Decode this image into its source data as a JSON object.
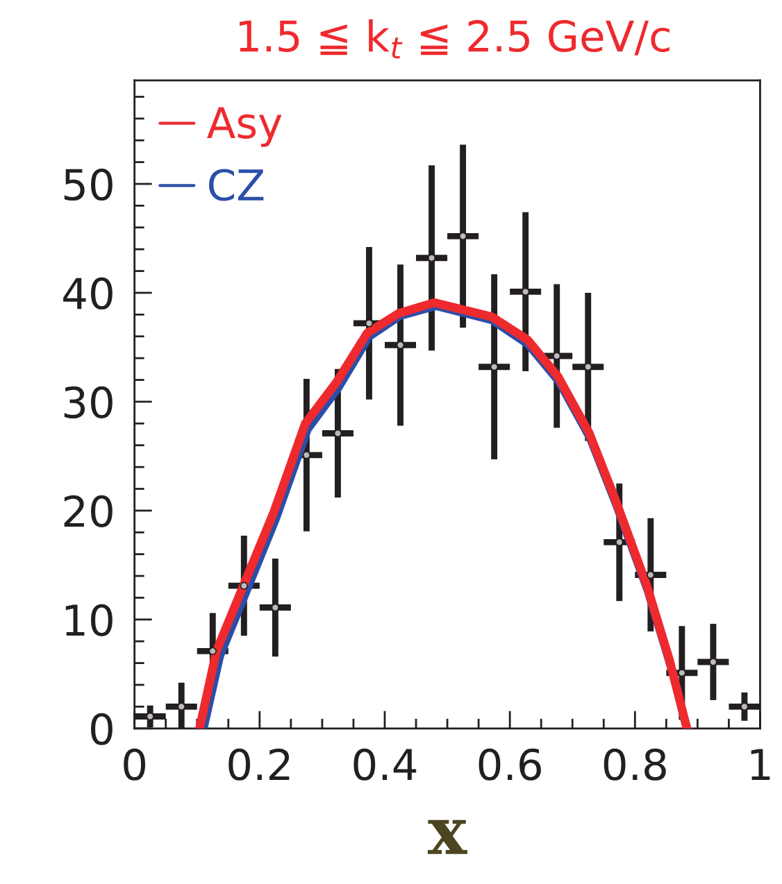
{
  "chart_data": {
    "type": "scatter",
    "title": "1.5 ≦ k$_{t}$ ≦ 2.5 GeV/c",
    "xlabel": "x",
    "xlim": [
      0,
      1
    ],
    "ylim": [
      0,
      59.5
    ],
    "xticks": [
      0,
      {
        "value": 0.05,
        "label": null
      },
      {
        "value": 0.1,
        "label": null
      },
      {
        "value": 0.15,
        "label": null
      },
      0.2,
      {
        "value": 0.25,
        "label": null
      },
      {
        "value": 0.3,
        "label": null
      },
      {
        "value": 0.35,
        "label": null
      },
      0.4,
      {
        "value": 0.45,
        "label": null
      },
      {
        "value": 0.5,
        "label": null
      },
      {
        "value": 0.55,
        "label": null
      },
      0.6,
      {
        "value": 0.65,
        "label": null
      },
      {
        "value": 0.7,
        "label": null
      },
      {
        "value": 0.75,
        "label": null
      },
      0.8,
      {
        "value": 0.85,
        "label": null
      },
      {
        "value": 0.9,
        "label": null
      },
      {
        "value": 0.95,
        "label": null
      },
      1
    ],
    "yticks": [
      0,
      {
        "value": 2,
        "label": null
      },
      {
        "value": 4,
        "label": null
      },
      {
        "value": 6,
        "label": null
      },
      {
        "value": 8,
        "label": null
      },
      10,
      {
        "value": 12,
        "label": null
      },
      {
        "value": 14,
        "label": null
      },
      {
        "value": 16,
        "label": null
      },
      {
        "value": 18,
        "label": null
      },
      20,
      {
        "value": 22,
        "label": null
      },
      {
        "value": 24,
        "label": null
      },
      {
        "value": 26,
        "label": null
      },
      {
        "value": 28,
        "label": null
      },
      30,
      {
        "value": 32,
        "label": null
      },
      {
        "value": 34,
        "label": null
      },
      {
        "value": 36,
        "label": null
      },
      {
        "value": 38,
        "label": null
      },
      40,
      {
        "value": 42,
        "label": null
      },
      {
        "value": 44,
        "label": null
      },
      {
        "value": 46,
        "label": null
      },
      {
        "value": 48,
        "label": null
      },
      50,
      {
        "value": 52,
        "label": null
      },
      {
        "value": 54,
        "label": null
      },
      {
        "value": 56,
        "label": null
      },
      {
        "value": 58,
        "label": null
      }
    ],
    "legend": "top left",
    "grid": false,
    "series": [
      {
        "color": "#231f20",
        "x": [
          0.025,
          0.075,
          0.125,
          0.175,
          0.225,
          0.275,
          0.325,
          0.375,
          0.425,
          0.475,
          0.525,
          0.575,
          0.625,
          0.675,
          0.725,
          0.775,
          0.825,
          0.875,
          0.925,
          0.975
        ],
        "values": [
          1.1,
          2.0,
          7.1,
          13.1,
          11.1,
          25.1,
          27.1,
          37.2,
          35.2,
          43.2,
          45.2,
          33.2,
          40.1,
          34.2,
          33.2,
          17.1,
          14.1,
          5.1,
          6.1,
          2.0
        ],
        "errors": [
          1.0,
          2.2,
          3.5,
          4.6,
          4.5,
          7.0,
          5.9,
          7.0,
          7.4,
          8.5,
          8.4,
          8.5,
          7.3,
          6.6,
          6.8,
          5.4,
          5.2,
          4.3,
          3.5,
          1.3
        ],
        "xerrors": [
          0.025,
          0.025,
          0.025,
          0.025,
          0.025,
          0.025,
          0.025,
          0.025,
          0.025,
          0.025,
          0.025,
          0.025,
          0.025,
          0.025,
          0.025,
          0.025,
          0.025,
          0.025,
          0.025,
          0.025
        ]
      },
      {
        "type": "line",
        "name": "CZ",
        "color": "#2b4fa8",
        "x": [
          0.112,
          0.138,
          0.18,
          0.228,
          0.278,
          0.328,
          0.376,
          0.425,
          0.482,
          0.571,
          0.628,
          0.677,
          0.727,
          0.77,
          0.819,
          0.855,
          0.885
        ],
        "values": [
          0,
          6.6,
          12.5,
          19.3,
          27.4,
          31.3,
          35.9,
          37.8,
          38.7,
          37.4,
          35.2,
          31.8,
          26.6,
          20.3,
          12.6,
          5.8,
          0
        ]
      },
      {
        "type": "line",
        "name": "Asy",
        "color": "#ee2a2e",
        "x": [
          0.104,
          0.131,
          0.174,
          0.223,
          0.273,
          0.323,
          0.372,
          0.422,
          0.479,
          0.571,
          0.628,
          0.677,
          0.727,
          0.77,
          0.819,
          0.855,
          0.883
        ],
        "values": [
          0,
          7.1,
          13.1,
          19.9,
          28.0,
          31.8,
          36.3,
          38.1,
          39.1,
          37.8,
          35.7,
          32.3,
          27.1,
          20.8,
          13.1,
          6.3,
          0
        ]
      }
    ]
  }
}
